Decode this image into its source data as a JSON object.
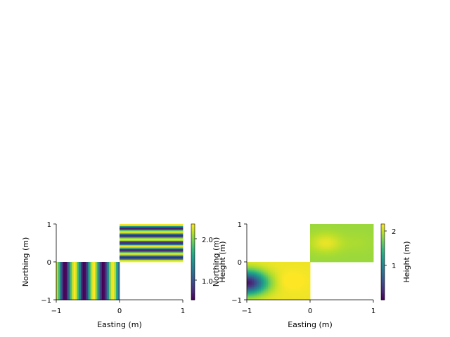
{
  "figure_background": "#ffffff",
  "colormap": {
    "name": "viridis",
    "stops": [
      "#440154",
      "#482878",
      "#3e4989",
      "#31688e",
      "#26828e",
      "#1f9e89",
      "#35b779",
      "#6ece58",
      "#b5de2b",
      "#fde725"
    ]
  },
  "chart_data": [
    {
      "type": "heatmap",
      "title": "",
      "xlabel": "Easting (m)",
      "ylabel": "Northing (m)",
      "xlim": [
        -1,
        1
      ],
      "ylim": [
        -1,
        1
      ],
      "xticks": [
        "−1",
        "0",
        "1"
      ],
      "yticks": [
        "−1",
        "0",
        "1"
      ],
      "grid": false,
      "patches": [
        {
          "x": [
            -1,
            0
          ],
          "y": [
            -1,
            0
          ],
          "field": "vertical_stripes",
          "description_values": "height varies with easting: cos-like bands, period ~0.3 m",
          "amplitude": 1.0,
          "offset": 1.5,
          "frequency": 3.3
        },
        {
          "x": [
            0,
            1
          ],
          "y": [
            0,
            1
          ],
          "field": "horizontal_stripes",
          "amplitude": 0.95,
          "offset": 1.6,
          "frequency": 5.2
        }
      ],
      "colorbar": {
        "label": "Height (m)",
        "vmin": 0.5,
        "vmax": 2.5,
        "ticks": [
          1.0,
          2.0
        ],
        "tick_labels": [
          "1.0",
          "2.0"
        ]
      }
    },
    {
      "type": "heatmap",
      "title": "",
      "xlabel": "Easting (m)",
      "ylabel": "Northing (m)",
      "xlim": [
        -1,
        1
      ],
      "ylim": [
        -1,
        1
      ],
      "xticks": [
        "−1",
        "0",
        "1"
      ],
      "yticks": [
        "−1",
        "0",
        "1"
      ],
      "grid": false,
      "patches": [
        {
          "x": [
            -1,
            0
          ],
          "y": [
            -1,
            0
          ],
          "field": "radial",
          "low_center": [
            -1.0,
            -0.55
          ],
          "high_center": [
            -0.3,
            -0.5
          ]
        },
        {
          "x": [
            0,
            1
          ],
          "y": [
            0,
            1
          ],
          "field": "smooth",
          "high_spots": [
            [
              0.25,
              0.5
            ],
            [
              0.75,
              0.5
            ]
          ]
        }
      ],
      "colorbar": {
        "label": "Height (m)",
        "vmin": 0.0,
        "vmax": 2.3,
        "ticks": [
          1,
          2
        ],
        "tick_labels": [
          "1",
          "2"
        ]
      }
    }
  ]
}
